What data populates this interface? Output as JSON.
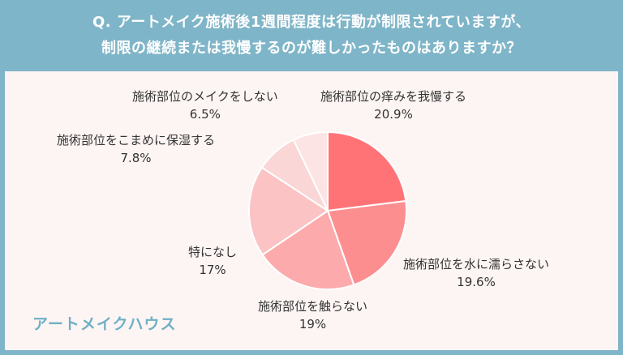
{
  "header": {
    "line1": "Q. アートメイク施術後1週間程度は行動が制限されていますが、",
    "line2": "制限の継続または我慢するのが難しかったものはありますか？"
  },
  "brand": "アートメイクハウス",
  "colors": {
    "background": "#7fb5c8",
    "panel": "#fdf5f3"
  },
  "chart_data": {
    "type": "pie",
    "title": "",
    "slices": [
      {
        "label": "施術部位の痒みを我慢する",
        "value": 20.9,
        "display": "20.9%",
        "color": "#ff7377"
      },
      {
        "label": "施術部位を水に濡らさない",
        "value": 19.6,
        "display": "19.6%",
        "color": "#fd8e90"
      },
      {
        "label": "施術部位を触らない",
        "value": 19,
        "display": "19%",
        "color": "#fcaaab"
      },
      {
        "label": "特になし",
        "value": 17,
        "display": "17%",
        "color": "#fbc3c4"
      },
      {
        "label": "施術部位をこまめに保湿する",
        "value": 7.8,
        "display": "7.8%",
        "color": "#fbd6d6"
      },
      {
        "label": "施術部位のメイクをしない",
        "value": 6.5,
        "display": "6.5%",
        "color": "#fbe4e3"
      }
    ]
  }
}
